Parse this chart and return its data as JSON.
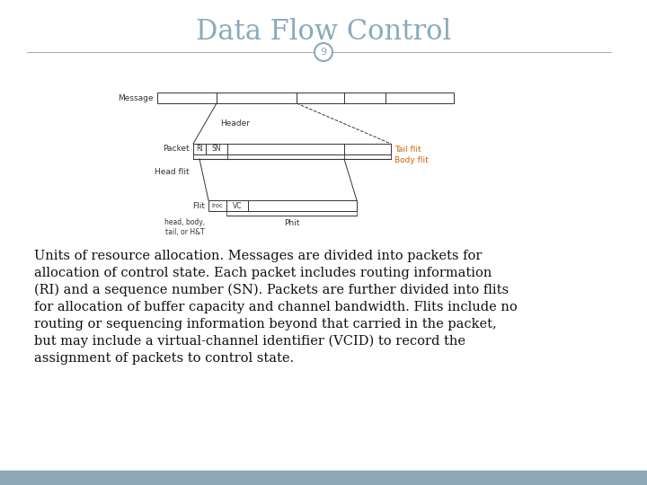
{
  "title": "Data Flow Control",
  "page_number": "9",
  "title_color": "#8aaabb",
  "title_fontsize": 22,
  "background_color": "#ffffff",
  "footer_color": "#8fa8b8",
  "body_text": "Units of resource allocation. Messages are divided into packets for allocation of control state. Each packet includes routing information (RI) and a sequence number (SN). Packets are further divided into flits for allocation of buffer capacity and channel bandwidth. Flits include no routing or sequencing information beyond that carried in the packet, but may include a virtual-channel identifier (VCID) to record the assignment of packets to control state.",
  "body_fontsize": 10.5,
  "diagram": {
    "message_label": "Message",
    "packet_label": "Packet",
    "flit_label": "Flit",
    "header_label": "Header",
    "tail_flit_label": "Tail flit",
    "body_flit_label": "Body flit",
    "head_flit_label": "Head flit",
    "phit_label": "Phit",
    "head_body_tail_label": "head, body,\ntail, or H&T",
    "ri_label": "RI",
    "sn_label": "SN",
    "iroc_label": "iroc",
    "vc_label": "VC",
    "line_color": "#333333",
    "label_color_orange": "#cc6600",
    "label_color_black": "#333333"
  }
}
